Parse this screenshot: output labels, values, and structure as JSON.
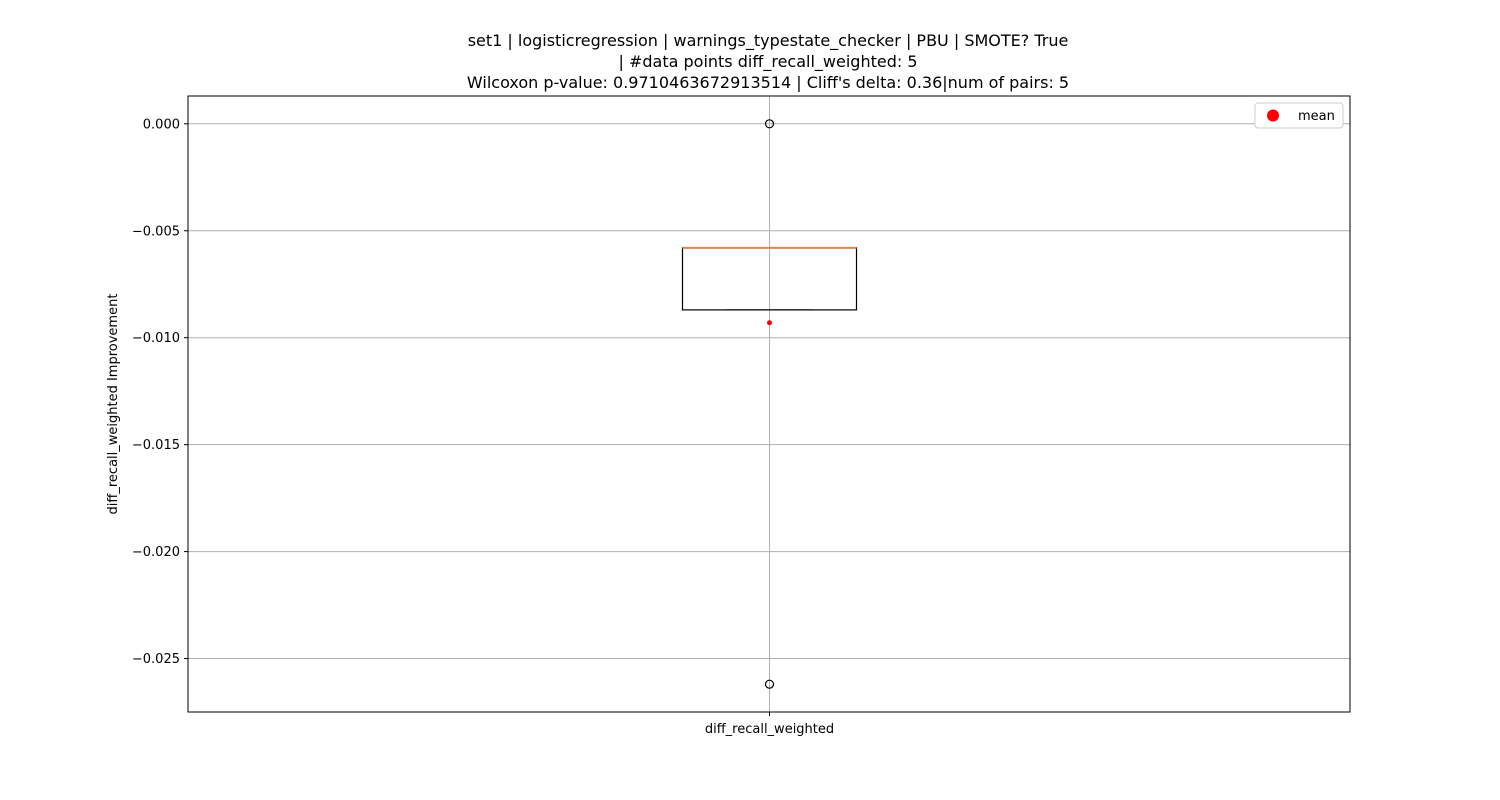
{
  "chart_data": {
    "type": "box",
    "title_lines": [
      "set1 | logisticregression | warnings_typestate_checker | PBU | SMOTE? True",
      "| #data points diff_recall_weighted: 5",
      "Wilcoxon p-value: 0.9710463672913514 | Cliff's delta: 0.36|num of pairs: 5"
    ],
    "xlabel": "",
    "ylabel": "diff_recall_weighted Improvement",
    "categories": [
      "diff_recall_weighted"
    ],
    "ylim": [
      -0.0275,
      0.0013
    ],
    "y_ticks": [
      0.0,
      -0.005,
      -0.01,
      -0.015,
      -0.02,
      -0.025
    ],
    "y_tick_labels": [
      "0.000",
      "−0.005",
      "−0.010",
      "−0.015",
      "−0.020",
      "−0.025"
    ],
    "grid": true,
    "legend": {
      "placement": "top-right",
      "entries": [
        "mean"
      ]
    },
    "box": {
      "q1": -0.0087,
      "median": -0.0058,
      "q3": -0.0058,
      "whisker_low": -0.0087,
      "whisker_high": -0.0058,
      "outliers": [
        0.0,
        -0.0262
      ],
      "mean": -0.0093
    },
    "colors": {
      "box": "#000000",
      "median": "#dd8452",
      "mean": "#ff0000",
      "grid": "#b0b0b0"
    }
  }
}
